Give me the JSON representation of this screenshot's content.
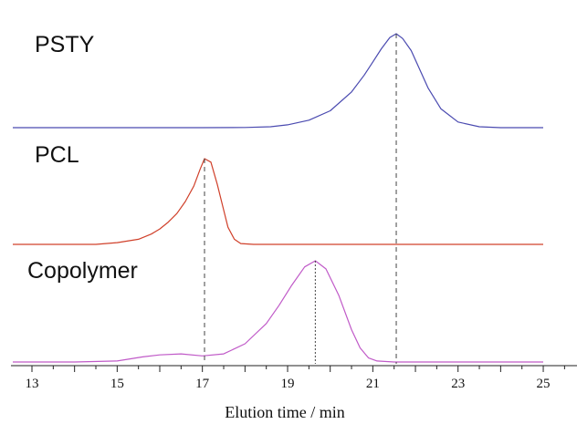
{
  "chart_data": {
    "type": "line",
    "xlabel": "Elution time / min",
    "ylabel": "",
    "xlim": [
      12.5,
      25.7
    ],
    "x_ticks": [
      "13",
      "15",
      "17",
      "19",
      "21",
      "23",
      "25"
    ],
    "grid": false,
    "legend": "none",
    "series": [
      {
        "name": "PSTY",
        "color": "#4a4ab0",
        "peak_x": 21.55,
        "x": [
          12.55,
          17.0,
          18.0,
          18.6,
          19.0,
          19.5,
          20.0,
          20.5,
          20.8,
          21.0,
          21.2,
          21.4,
          21.55,
          21.7,
          21.9,
          22.1,
          22.3,
          22.6,
          23.0,
          23.5,
          24.0,
          25.0
        ],
        "y": [
          0.0,
          0.0,
          0.002,
          0.01,
          0.03,
          0.08,
          0.18,
          0.38,
          0.56,
          0.7,
          0.84,
          0.96,
          1.0,
          0.95,
          0.82,
          0.62,
          0.42,
          0.2,
          0.06,
          0.01,
          0.0,
          0.0
        ]
      },
      {
        "name": "PCL",
        "color": "#d0402a",
        "peak_x": 17.05,
        "x": [
          12.55,
          14.5,
          15.0,
          15.5,
          15.8,
          16.0,
          16.2,
          16.4,
          16.6,
          16.8,
          16.95,
          17.05,
          17.2,
          17.35,
          17.5,
          17.6,
          17.75,
          17.9,
          18.2,
          20.0,
          25.0
        ],
        "y": [
          0.0,
          0.0,
          0.02,
          0.06,
          0.12,
          0.18,
          0.26,
          0.36,
          0.5,
          0.68,
          0.88,
          1.0,
          0.96,
          0.7,
          0.4,
          0.2,
          0.06,
          0.01,
          0.0,
          0.0,
          0.0
        ]
      },
      {
        "name": "Copolymer",
        "color": "#c05ac8",
        "peak_x": 19.65,
        "x": [
          12.55,
          14.0,
          15.0,
          15.6,
          16.0,
          16.5,
          17.0,
          17.5,
          18.0,
          18.5,
          18.8,
          19.1,
          19.4,
          19.65,
          19.9,
          20.2,
          20.5,
          20.7,
          20.9,
          21.1,
          21.5,
          22.0,
          25.0
        ],
        "y": [
          0.0,
          0.0,
          0.01,
          0.05,
          0.07,
          0.08,
          0.06,
          0.08,
          0.18,
          0.38,
          0.56,
          0.76,
          0.94,
          1.0,
          0.92,
          0.66,
          0.32,
          0.14,
          0.04,
          0.01,
          0.0,
          0.0,
          0.0
        ]
      }
    ],
    "annotations": [
      {
        "type": "dashed-line",
        "x": 21.55,
        "from": "PSTY",
        "to": "axis"
      },
      {
        "type": "dashed-line",
        "x": 17.05,
        "from": "PCL",
        "to": "axis"
      },
      {
        "type": "dotted-line",
        "x": 19.65,
        "from": "Copolymer",
        "to": "axis"
      }
    ]
  }
}
